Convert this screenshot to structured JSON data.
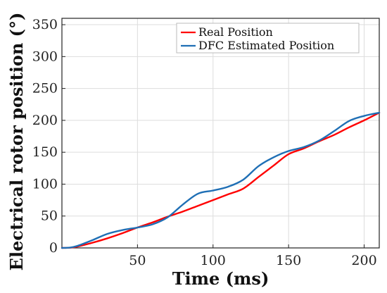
{
  "chart_data": {
    "type": "line",
    "title": "",
    "xlabel": "Time (ms)",
    "ylabel": "Electrical rotor position (°)",
    "xlim": [
      0,
      210
    ],
    "ylim": [
      0,
      360
    ],
    "xticks": [
      50,
      100,
      150,
      200
    ],
    "yticks": [
      0,
      50,
      100,
      150,
      200,
      250,
      300,
      350
    ],
    "grid": true,
    "legend_position": "top-right",
    "series": [
      {
        "name": "Real Position",
        "color": "#ff0000",
        "x": [
          0,
          5,
          10,
          20,
          30,
          40,
          50,
          60,
          70,
          80,
          90,
          100,
          110,
          120,
          130,
          140,
          150,
          160,
          170,
          180,
          190,
          200,
          210
        ],
        "y": [
          0,
          0.3,
          2,
          8,
          15,
          23,
          32,
          40,
          49,
          57,
          66,
          75,
          84,
          93,
          111,
          129,
          147,
          156,
          167,
          177,
          189,
          200,
          212
        ]
      },
      {
        "name": "DFC Estimated Position",
        "color": "#1f6fb5",
        "x": [
          0,
          5,
          10,
          20,
          30,
          40,
          50,
          60,
          70,
          80,
          90,
          100,
          110,
          120,
          130,
          140,
          150,
          160,
          170,
          180,
          190,
          200,
          210
        ],
        "y": [
          0,
          0.5,
          3,
          12,
          22,
          28,
          32,
          37,
          48,
          68,
          85,
          90,
          96,
          107,
          128,
          142,
          152,
          158,
          168,
          183,
          199,
          207,
          212
        ]
      }
    ]
  }
}
